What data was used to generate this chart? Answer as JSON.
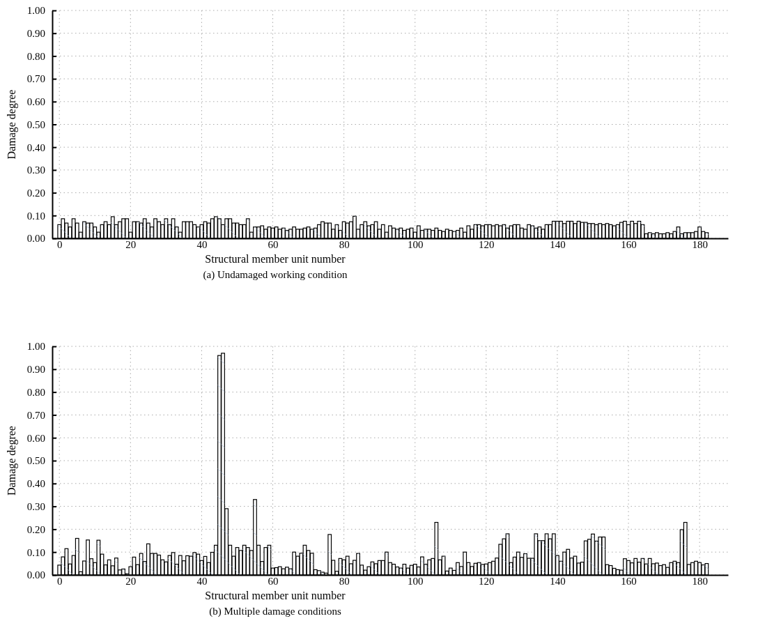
{
  "chart_data": [
    {
      "type": "bar",
      "title": "(a) Undamaged working condition",
      "xlabel": "Structural member unit number",
      "ylabel": "Damage degree",
      "color": "#ffffff",
      "grid": true,
      "xlim": [
        -2,
        188
      ],
      "xticks": [
        0,
        20,
        40,
        60,
        80,
        100,
        120,
        140,
        160,
        180
      ],
      "ylim": [
        0,
        1
      ],
      "yticks": [
        {
          "value": 0,
          "label": "0.00"
        },
        {
          "value": 0.1,
          "label": "0.10"
        },
        {
          "value": 0.2,
          "label": "0.20"
        },
        {
          "value": 0.3,
          "label": "0.30"
        },
        {
          "value": 0.4,
          "label": "0.40"
        },
        {
          "value": 0.5,
          "label": "0.50"
        },
        {
          "value": 0.6,
          "label": "0.60"
        },
        {
          "value": 0.7,
          "label": "0.70"
        },
        {
          "value": 0.8,
          "label": "0.80"
        },
        {
          "value": 0.9,
          "label": "0.90"
        },
        {
          "value": 1,
          "label": "1.00"
        }
      ],
      "x": [
        0,
        1,
        2,
        3,
        4,
        5,
        6,
        7,
        8,
        9,
        10,
        11,
        12,
        13,
        14,
        15,
        16,
        17,
        18,
        19,
        20,
        21,
        22,
        23,
        24,
        25,
        26,
        27,
        28,
        29,
        30,
        31,
        32,
        33,
        34,
        35,
        36,
        37,
        38,
        39,
        40,
        41,
        42,
        43,
        44,
        45,
        46,
        47,
        48,
        49,
        50,
        51,
        52,
        53,
        54,
        55,
        56,
        57,
        58,
        59,
        60,
        61,
        62,
        63,
        64,
        65,
        66,
        67,
        68,
        69,
        70,
        71,
        72,
        73,
        74,
        75,
        76,
        77,
        78,
        79,
        80,
        81,
        82,
        83,
        84,
        85,
        86,
        87,
        88,
        89,
        90,
        91,
        92,
        93,
        94,
        95,
        96,
        97,
        98,
        99,
        100,
        101,
        102,
        103,
        104,
        105,
        106,
        107,
        108,
        109,
        110,
        111,
        112,
        113,
        114,
        115,
        116,
        117,
        118,
        119,
        120,
        121,
        122,
        123,
        124,
        125,
        126,
        127,
        128,
        129,
        130,
        131,
        132,
        133,
        134,
        135,
        136,
        137,
        138,
        139,
        140,
        141,
        142,
        143,
        144,
        145,
        146,
        147,
        148,
        149,
        150,
        151,
        152,
        153,
        154,
        155,
        156,
        157,
        158,
        159,
        160,
        161,
        162,
        163,
        164,
        165,
        166,
        167,
        168,
        169,
        170,
        171,
        172,
        173,
        174,
        175,
        176,
        177,
        178,
        179,
        180,
        181,
        182
      ],
      "values": [
        0.06,
        0.086,
        0.067,
        0.05,
        0.086,
        0.067,
        0.027,
        0.073,
        0.067,
        0.067,
        0.05,
        0.027,
        0.06,
        0.073,
        0.06,
        0.095,
        0.06,
        0.073,
        0.086,
        0.086,
        0.027,
        0.073,
        0.073,
        0.067,
        0.086,
        0.067,
        0.05,
        0.086,
        0.073,
        0.06,
        0.086,
        0.06,
        0.086,
        0.05,
        0.027,
        0.073,
        0.073,
        0.073,
        0.06,
        0.05,
        0.06,
        0.073,
        0.067,
        0.086,
        0.095,
        0.086,
        0.06,
        0.086,
        0.086,
        0.067,
        0.067,
        0.06,
        0.06,
        0.086,
        0.027,
        0.05,
        0.05,
        0.055,
        0.04,
        0.05,
        0.045,
        0.05,
        0.04,
        0.045,
        0.035,
        0.04,
        0.05,
        0.04,
        0.04,
        0.045,
        0.05,
        0.04,
        0.045,
        0.06,
        0.073,
        0.067,
        0.067,
        0.04,
        0.06,
        0.035,
        0.073,
        0.067,
        0.073,
        0.097,
        0.04,
        0.06,
        0.073,
        0.055,
        0.06,
        0.073,
        0.04,
        0.06,
        0.027,
        0.055,
        0.045,
        0.04,
        0.045,
        0.035,
        0.04,
        0.045,
        0.027,
        0.055,
        0.035,
        0.04,
        0.04,
        0.035,
        0.045,
        0.035,
        0.03,
        0.04,
        0.035,
        0.03,
        0.035,
        0.045,
        0.027,
        0.055,
        0.04,
        0.06,
        0.06,
        0.055,
        0.06,
        0.06,
        0.055,
        0.06,
        0.055,
        0.06,
        0.045,
        0.055,
        0.06,
        0.06,
        0.045,
        0.04,
        0.06,
        0.055,
        0.045,
        0.05,
        0.04,
        0.06,
        0.06,
        0.075,
        0.075,
        0.075,
        0.065,
        0.075,
        0.075,
        0.065,
        0.075,
        0.07,
        0.07,
        0.065,
        0.065,
        0.06,
        0.065,
        0.06,
        0.065,
        0.06,
        0.055,
        0.06,
        0.07,
        0.075,
        0.06,
        0.075,
        0.065,
        0.075,
        0.06,
        0.02,
        0.025,
        0.02,
        0.025,
        0.02,
        0.02,
        0.025,
        0.02,
        0.03,
        0.05,
        0.02,
        0.025,
        0.025,
        0.025,
        0.03,
        0.05,
        0.03,
        0.025
      ]
    },
    {
      "type": "bar",
      "title": "(b) Multiple damage conditions",
      "xlabel": "Structural member unit number",
      "ylabel": "Damage degree",
      "color": "#ffffff",
      "grid": true,
      "xlim": [
        -2,
        188
      ],
      "xticks": [
        0,
        20,
        40,
        60,
        80,
        100,
        120,
        140,
        160,
        180
      ],
      "ylim": [
        0,
        1
      ],
      "yticks": [
        {
          "value": 0,
          "label": "0.00"
        },
        {
          "value": 0.1,
          "label": "0.10"
        },
        {
          "value": 0.2,
          "label": "0.20"
        },
        {
          "value": 0.3,
          "label": "0.30"
        },
        {
          "value": 0.4,
          "label": "0.40"
        },
        {
          "value": 0.5,
          "label": "0.50"
        },
        {
          "value": 0.6,
          "label": "0.60"
        },
        {
          "value": 0.7,
          "label": "0.70"
        },
        {
          "value": 0.8,
          "label": "0.80"
        },
        {
          "value": 0.9,
          "label": "0.90"
        },
        {
          "value": 1,
          "label": "1.00"
        }
      ],
      "x": [
        0,
        1,
        2,
        3,
        4,
        5,
        6,
        7,
        8,
        9,
        10,
        11,
        12,
        13,
        14,
        15,
        16,
        17,
        18,
        19,
        20,
        21,
        22,
        23,
        24,
        25,
        26,
        27,
        28,
        29,
        30,
        31,
        32,
        33,
        34,
        35,
        36,
        37,
        38,
        39,
        40,
        41,
        42,
        43,
        44,
        45,
        46,
        47,
        48,
        49,
        50,
        51,
        52,
        53,
        54,
        55,
        56,
        57,
        58,
        59,
        60,
        61,
        62,
        63,
        64,
        65,
        66,
        67,
        68,
        69,
        70,
        71,
        72,
        73,
        74,
        75,
        76,
        77,
        78,
        79,
        80,
        81,
        82,
        83,
        84,
        85,
        86,
        87,
        88,
        89,
        90,
        91,
        92,
        93,
        94,
        95,
        96,
        97,
        98,
        99,
        100,
        101,
        102,
        103,
        104,
        105,
        106,
        107,
        108,
        109,
        110,
        111,
        112,
        113,
        114,
        115,
        116,
        117,
        118,
        119,
        120,
        121,
        122,
        123,
        124,
        125,
        126,
        127,
        128,
        129,
        130,
        131,
        132,
        133,
        134,
        135,
        136,
        137,
        138,
        139,
        140,
        141,
        142,
        143,
        144,
        145,
        146,
        147,
        148,
        149,
        150,
        151,
        152,
        153,
        154,
        155,
        156,
        157,
        158,
        159,
        160,
        161,
        162,
        163,
        164,
        165,
        166,
        167,
        168,
        169,
        170,
        171,
        172,
        173,
        174,
        175,
        176,
        177,
        178,
        179,
        180,
        181,
        182
      ],
      "values": [
        0.043,
        0.079,
        0.115,
        0.048,
        0.085,
        0.16,
        0.014,
        0.061,
        0.153,
        0.071,
        0.054,
        0.152,
        0.091,
        0.044,
        0.066,
        0.04,
        0.074,
        0.022,
        0.026,
        0.005,
        0.036,
        0.078,
        0.045,
        0.094,
        0.059,
        0.136,
        0.094,
        0.094,
        0.087,
        0.066,
        0.057,
        0.085,
        0.098,
        0.047,
        0.085,
        0.062,
        0.084,
        0.082,
        0.098,
        0.091,
        0.063,
        0.081,
        0.054,
        0.099,
        0.13,
        0.96,
        0.97,
        0.29,
        0.13,
        0.082,
        0.12,
        0.107,
        0.13,
        0.12,
        0.107,
        0.33,
        0.13,
        0.059,
        0.12,
        0.13,
        0.03,
        0.032,
        0.036,
        0.027,
        0.034,
        0.027,
        0.1,
        0.082,
        0.095,
        0.13,
        0.107,
        0.095,
        0.023,
        0.019,
        0.012,
        0.008,
        0.177,
        0.064,
        0.016,
        0.072,
        0.066,
        0.082,
        0.049,
        0.064,
        0.094,
        0.043,
        0.021,
        0.036,
        0.057,
        0.049,
        0.063,
        0.063,
        0.1,
        0.054,
        0.047,
        0.035,
        0.03,
        0.047,
        0.03,
        0.042,
        0.047,
        0.035,
        0.079,
        0.047,
        0.066,
        0.072,
        0.23,
        0.066,
        0.082,
        0.017,
        0.03,
        0.02,
        0.054,
        0.037,
        0.1,
        0.054,
        0.037,
        0.051,
        0.054,
        0.046,
        0.048,
        0.054,
        0.06,
        0.074,
        0.134,
        0.158,
        0.18,
        0.054,
        0.078,
        0.1,
        0.077,
        0.093,
        0.073,
        0.073,
        0.18,
        0.15,
        0.15,
        0.18,
        0.158,
        0.18,
        0.085,
        0.06,
        0.1,
        0.112,
        0.074,
        0.082,
        0.052,
        0.056,
        0.149,
        0.156,
        0.179,
        0.148,
        0.166,
        0.166,
        0.045,
        0.041,
        0.029,
        0.023,
        0.021,
        0.071,
        0.063,
        0.053,
        0.072,
        0.056,
        0.072,
        0.048,
        0.072,
        0.049,
        0.052,
        0.041,
        0.045,
        0.033,
        0.054,
        0.06,
        0.054,
        0.198,
        0.23,
        0.046,
        0.054,
        0.06,
        0.054,
        0.044,
        0.05
      ]
    }
  ]
}
